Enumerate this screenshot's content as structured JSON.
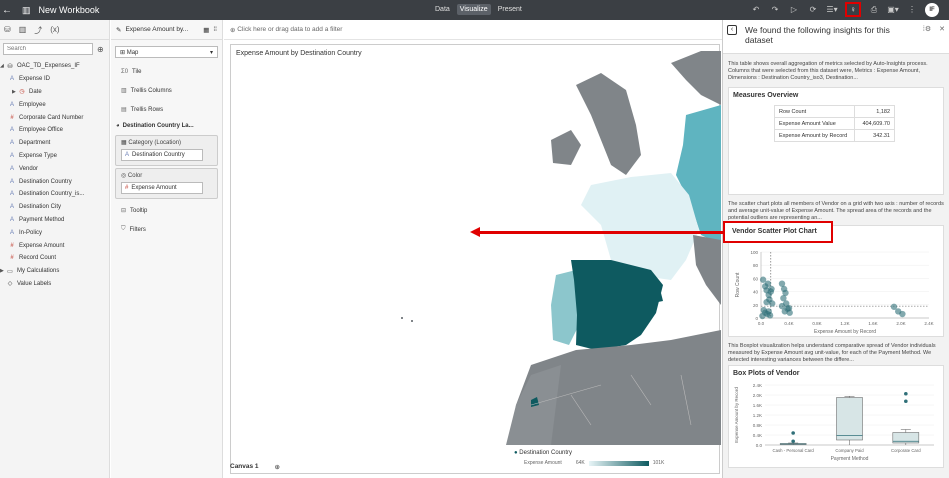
{
  "topbar": {
    "title": "New Workbook",
    "modes": [
      "Data",
      "Visualize",
      "Present"
    ],
    "active_mode": "Visualize",
    "avatar": "IF"
  },
  "left_panel": {
    "search_placeholder": "Search",
    "dataset": "OAC_TD_Expenses_IF",
    "fields": [
      {
        "label": "Expense ID",
        "type": "attribute"
      },
      {
        "label": "Date",
        "type": "date"
      },
      {
        "label": "Employee",
        "type": "attribute"
      },
      {
        "label": "Corporate Card Number",
        "type": "measure"
      },
      {
        "label": "Employee Office",
        "type": "attribute"
      },
      {
        "label": "Department",
        "type": "attribute"
      },
      {
        "label": "Expense Type",
        "type": "attribute"
      },
      {
        "label": "Vendor",
        "type": "attribute"
      },
      {
        "label": "Destination Country",
        "type": "attribute"
      },
      {
        "label": "Destination Country_is...",
        "type": "attribute"
      },
      {
        "label": "Destination City",
        "type": "attribute"
      },
      {
        "label": "Payment Method",
        "type": "attribute"
      },
      {
        "label": "In-Policy",
        "type": "attribute"
      },
      {
        "label": "Expense Amount",
        "type": "measure"
      },
      {
        "label": "Record Count",
        "type": "measure"
      }
    ],
    "my_calculations": "My Calculations",
    "value_labels": "Value Labels"
  },
  "grammar": {
    "title": "Expense Amount by...",
    "viz_type": "Map",
    "rows": [
      "Tile",
      "Trellis Columns",
      "Trellis Rows"
    ],
    "layer": "Destination Country La...",
    "category_label": "Category (Location)",
    "category_value": "Destination Country",
    "color_label": "Color",
    "color_value": "Expense Amount",
    "tooltip": "Tooltip",
    "filters": "Filters"
  },
  "canvas": {
    "filter_placeholder": "Click here or drag data to add a filter",
    "viz_title": "Expense Amount by Destination Country",
    "legend_title": "Destination Country",
    "legend_measure": "Expense Amount",
    "legend_min": "64K",
    "legend_max": "101K",
    "tab": "Canvas 1"
  },
  "insights": {
    "title": "We found the following insights for this dataset",
    "desc1": "This table shows overall aggregation of metrics selected by Auto-Insights process. Columns that were selected from this dataset were, Metrics : Expense Amount, Dimensions : Destination Country_iso3, Destination...",
    "measures_title": "Measures Overview",
    "measures": [
      {
        "label": "Row Count",
        "value": "1,182"
      },
      {
        "label": "Expense Amount Value",
        "value": "404,609.70"
      },
      {
        "label": "Expense Amount by Record",
        "value": "342.31"
      }
    ],
    "desc2": "The scatter chart plots all members of Vendor on a grid with two axis : number of records and average unit-value of Expense Amount. The spread area of the records and the potential outliers are representing an...",
    "scatter_title": "Vendor Scatter Plot Chart",
    "desc3": "This Boxplot visualization helps understand comparative spread of Vendor individuals measured by Expense Amount avg unit-value, for each of the Payment Method. We detected interesting variances between the differe...",
    "box_title": "Box Plots of Vendor"
  },
  "chart_data": [
    {
      "type": "scatter",
      "title": "Vendor Scatter Plot Chart",
      "xlabel": "Expense Amount by Record",
      "ylabel": "Row Count",
      "xlim": [
        0,
        2400
      ],
      "ylim": [
        0,
        100
      ],
      "x_ticks": [
        "0.0",
        "0.4K",
        "0.8K",
        "1.2K",
        "1.6K",
        "2.0K",
        "2.4K"
      ],
      "y_ticks": [
        "0",
        "20",
        "40",
        "60",
        "80",
        "100"
      ],
      "points": [
        {
          "x": 30,
          "y": 58
        },
        {
          "x": 60,
          "y": 48
        },
        {
          "x": 80,
          "y": 42
        },
        {
          "x": 100,
          "y": 52
        },
        {
          "x": 110,
          "y": 35
        },
        {
          "x": 120,
          "y": 28
        },
        {
          "x": 140,
          "y": 40
        },
        {
          "x": 150,
          "y": 44
        },
        {
          "x": 60,
          "y": 8
        },
        {
          "x": 90,
          "y": 6
        },
        {
          "x": 110,
          "y": 10
        },
        {
          "x": 130,
          "y": 4
        },
        {
          "x": 40,
          "y": 12
        },
        {
          "x": 160,
          "y": 22
        },
        {
          "x": 80,
          "y": 24
        },
        {
          "x": 20,
          "y": 3
        },
        {
          "x": 300,
          "y": 52
        },
        {
          "x": 330,
          "y": 44
        },
        {
          "x": 350,
          "y": 38
        },
        {
          "x": 320,
          "y": 30
        },
        {
          "x": 360,
          "y": 22
        },
        {
          "x": 380,
          "y": 14
        },
        {
          "x": 340,
          "y": 10
        },
        {
          "x": 400,
          "y": 15
        },
        {
          "x": 410,
          "y": 8
        },
        {
          "x": 300,
          "y": 18
        },
        {
          "x": 1900,
          "y": 17
        },
        {
          "x": 1960,
          "y": 10
        },
        {
          "x": 2020,
          "y": 6
        }
      ],
      "ref_x": 140,
      "ref_y": 18
    },
    {
      "type": "box",
      "title": "Box Plots of Vendor",
      "xlabel": "Payment Method",
      "ylabel": "Expense Amount by Record",
      "ylim": [
        0,
        2400
      ],
      "y_ticks": [
        "0.0",
        "0.4K",
        "0.8K",
        "1.2K",
        "1.6K",
        "2.0K",
        "2.4K"
      ],
      "categories": [
        "Cash - Personal Card",
        "Company Paid",
        "Corporate Card"
      ],
      "boxes": [
        {
          "min": 0,
          "q1": 20,
          "median": 40,
          "q3": 60,
          "max": 80,
          "outliers": [
            150,
            480
          ]
        },
        {
          "min": 0,
          "q1": 200,
          "median": 380,
          "q3": 1900,
          "max": 1950,
          "outliers": []
        },
        {
          "min": 0,
          "q1": 80,
          "median": 150,
          "q3": 500,
          "max": 620,
          "outliers": [
            1750,
            2050
          ]
        }
      ]
    }
  ]
}
